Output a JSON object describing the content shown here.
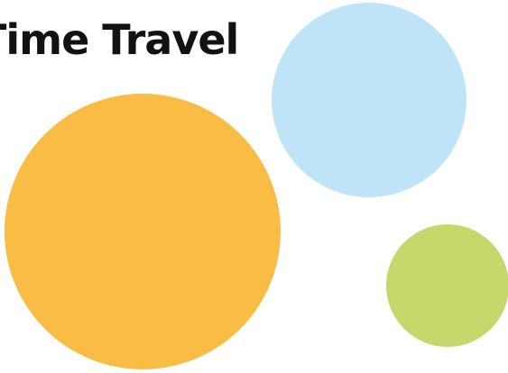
{
  "title": "Time Travel",
  "colors": {
    "background": "#ffffff",
    "title_text": "#121212",
    "orange_circle": "#f9bc45",
    "blue_circle": "#bfe4f8",
    "green_circle": "#c6d76b"
  }
}
